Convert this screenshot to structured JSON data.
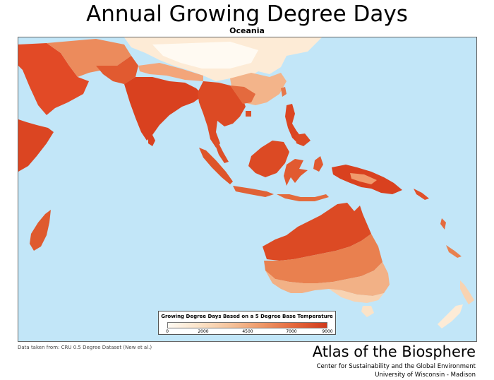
{
  "title": "Annual Growing Degree Days",
  "subtitle": "Oceania",
  "legend": {
    "title": "Growing Degree Days Based on a 5 Degree Base Temperature",
    "ticks": [
      "0",
      "2000",
      "4500",
      "7000",
      "9000"
    ],
    "colors": [
      "#fffaf2",
      "#fbe3c8",
      "#f5c29a",
      "#ee9666",
      "#e4663b",
      "#d03a1c"
    ]
  },
  "source": "Data taken from: CRU 0.5 Degree Dataset (New et al.)",
  "footer": {
    "atlas": "Atlas of the Biosphere",
    "center": "Center for Sustainability and the Global Environment",
    "university": "University of Wisconsin - Madison"
  },
  "colors": {
    "ocean": "#c2e6f8",
    "very_high": "#d03a1c",
    "high": "#e4663b",
    "medium": "#ee9666",
    "low": "#f5c29a",
    "very_low": "#fbe3c8",
    "minimal": "#fffaf2"
  }
}
